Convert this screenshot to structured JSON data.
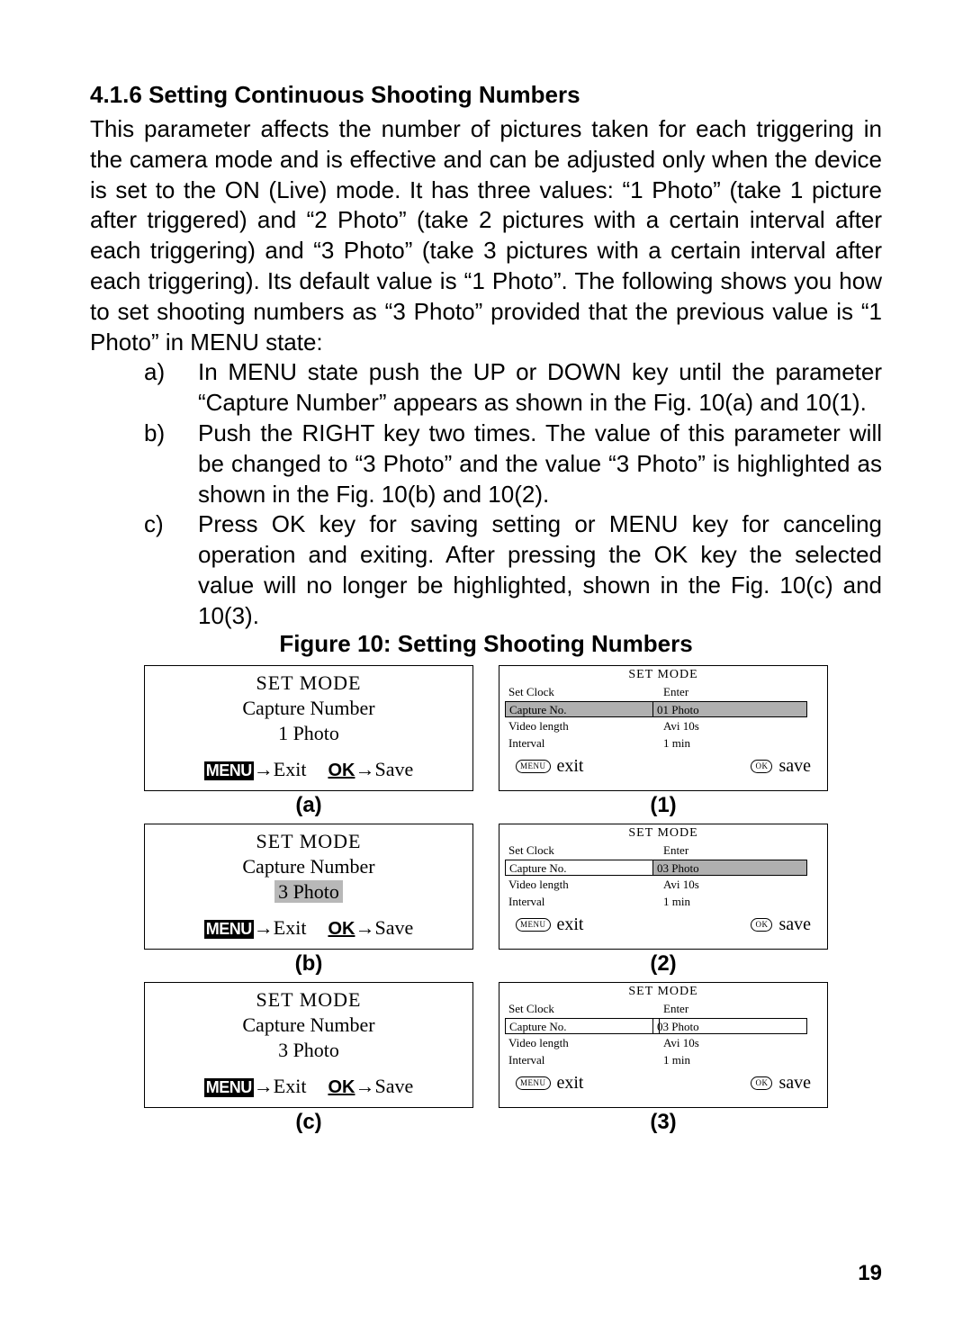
{
  "section": {
    "number": "4.1.6",
    "title": "Setting Continuous Shooting Numbers"
  },
  "paragraph": "This parameter affects the number of pictures taken for each triggering in the camera mode and is effective and can be adjusted only when the device is set to the ON (Live) mode. It has three values: “1 Photo” (take 1 picture after triggered) and “2 Photo” (take 2 pictures with a certain interval after each triggering) and “3 Photo” (take 3 pictures with a certain interval after each triggering). Its default value is “1 Photo”. The following shows you how to set shooting numbers as “3 Photo” provided that the previous value is “1 Photo” in MENU state:",
  "steps": [
    {
      "label": "a)",
      "text": "In MENU state push the UP or DOWN key until the parameter “Capture Number” appears as shown in the Fig. 10(a) and 10(1)."
    },
    {
      "label": "b)",
      "text": "Push the RIGHT key two times. The value of this parameter will be changed to “3 Photo” and the value “3 Photo” is highlighted as shown in the Fig. 10(b) and 10(2)."
    },
    {
      "label": "c)",
      "text": "Press OK key for saving setting or MENU key for canceling operation and exiting. After pressing the OK key the selected value will no longer be highlighted, shown in the Fig. 10(c) and 10(3)."
    }
  ],
  "figure_caption": "Figure 10: Setting Shooting Numbers",
  "left_panels": [
    {
      "title": "SET MODE",
      "param": "Capture Number",
      "value": "1 Photo",
      "value_hl": false,
      "menu_label": "MENU",
      "exit": "Exit",
      "ok_label": "OK",
      "save": "Save",
      "lbl": "(a)"
    },
    {
      "title": "SET MODE",
      "param": "Capture Number",
      "value": "3 Photo",
      "value_hl": true,
      "menu_label": "MENU",
      "exit": "Exit",
      "ok_label": "OK",
      "save": "Save",
      "lbl": "(b)"
    },
    {
      "title": "SET MODE",
      "param": "Capture Number",
      "value": "3 Photo",
      "value_hl": false,
      "menu_label": "MENU",
      "exit": "Exit",
      "ok_label": "OK",
      "save": "Save",
      "lbl": "(c)"
    }
  ],
  "right_panels": [
    {
      "title": "SET MODE",
      "rows": [
        {
          "l": "Set Clock",
          "r": "Enter",
          "hl": false,
          "boxed": false
        },
        {
          "l": "Capture No.",
          "r": "01 Photo",
          "hl": true,
          "boxed": true
        },
        {
          "l": "Video length",
          "r": "Avi 10s",
          "hl": false,
          "boxed": false
        },
        {
          "l": "Interval",
          "r": "1 min",
          "hl": false,
          "boxed": false
        }
      ],
      "footer": {
        "menu_pill": "MENU",
        "exit": "exit",
        "ok_pill": "OK",
        "save": "save"
      },
      "lbl": "(1)"
    },
    {
      "title": "SET MODE",
      "rows": [
        {
          "l": "Set Clock",
          "r": "Enter",
          "hl": false,
          "boxed": false
        },
        {
          "l": "Capture No.",
          "r": "03 Photo",
          "hl": false,
          "hl_r": true,
          "boxed": true
        },
        {
          "l": "Video length",
          "r": "Avi 10s",
          "hl": false,
          "boxed": false
        },
        {
          "l": "Interval",
          "r": "1 min",
          "hl": false,
          "boxed": false
        }
      ],
      "footer": {
        "menu_pill": "MENU",
        "exit": "exit",
        "ok_pill": "OK",
        "save": "save"
      },
      "lbl": "(2)"
    },
    {
      "title": "SET MODE",
      "rows": [
        {
          "l": "Set Clock",
          "r": "Enter",
          "hl": false,
          "boxed": false
        },
        {
          "l": "Capture No.",
          "r": "03 Photo",
          "hl": false,
          "boxed": true
        },
        {
          "l": "Video length",
          "r": "Avi 10s",
          "hl": false,
          "boxed": false
        },
        {
          "l": "Interval",
          "r": "1 min",
          "hl": false,
          "boxed": false
        }
      ],
      "footer": {
        "menu_pill": "MENU",
        "exit": "exit",
        "ok_pill": "OK",
        "save": "save"
      },
      "lbl": "(3)"
    }
  ],
  "page_number": "19"
}
